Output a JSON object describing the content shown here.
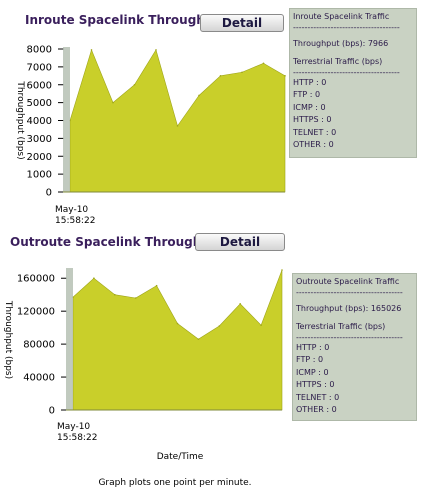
{
  "colors": {
    "fill": "#c9cf2a",
    "title": "#3a1f5c",
    "panel_bg": "#c9d2c3",
    "marker": "#b6c1b4"
  },
  "inroute": {
    "title": "Inroute Spacelink Throughput",
    "detail_label": "Detail",
    "panel": {
      "heading": "Inroute Spacelink Traffic",
      "separator": "-------------------------------------",
      "throughput": "Throughput (bps): 7966",
      "terrestrial_heading": "Terrestrial Traffic (bps)",
      "separator2": "-------------------------------------",
      "rows": [
        "HTTP : 0",
        "FTP : 0",
        "ICMP : 0",
        "HTTPS : 0",
        "TELNET : 0",
        "OTHER : 0"
      ]
    }
  },
  "outroute": {
    "title": "Outroute Spacelink Throughput",
    "detail_label": "Detail",
    "panel": {
      "heading": "Outroute Spacelink Traffic",
      "separator": "-------------------------------------",
      "throughput": "Throughput (bps): 165026",
      "terrestrial_heading": "Terrestrial Traffic (bps)",
      "separator2": "-------------------------------------",
      "rows": [
        "HTTP : 0",
        "FTP : 0",
        "ICMP : 0",
        "HTTPS : 0",
        "TELNET : 0",
        "OTHER : 0"
      ]
    }
  },
  "footer": {
    "xlabel": "Date/Time",
    "note": "Graph plots one point per minute."
  },
  "chart_data": [
    {
      "type": "area",
      "title": "Inroute Spacelink Throughput",
      "ylabel": "Throughput (bps)",
      "xlabel": "",
      "ylim": [
        0,
        8000
      ],
      "yticks": [
        0,
        1000,
        2000,
        3000,
        4000,
        5000,
        6000,
        7000,
        8000
      ],
      "x_tick_labels": [
        "May-10",
        "15:58:22"
      ],
      "grid": false,
      "series": [
        {
          "values": [
            4000,
            7950,
            5000,
            6000,
            7950,
            3700,
            5400,
            6500,
            6700,
            7200,
            6500
          ]
        }
      ]
    },
    {
      "type": "area",
      "title": "Outroute Spacelink Throughput",
      "ylabel": "Throughput (bps)",
      "xlabel": "Date/Time",
      "ylim": [
        0,
        170000
      ],
      "yticks": [
        0,
        40000,
        80000,
        120000,
        160000
      ],
      "x_tick_labels": [
        "May-10",
        "15:58:22"
      ],
      "grid": false,
      "series": [
        {
          "values": [
            137000,
            160000,
            140000,
            136000,
            151000,
            105000,
            86000,
            102000,
            129000,
            103000,
            170000
          ]
        }
      ]
    }
  ]
}
